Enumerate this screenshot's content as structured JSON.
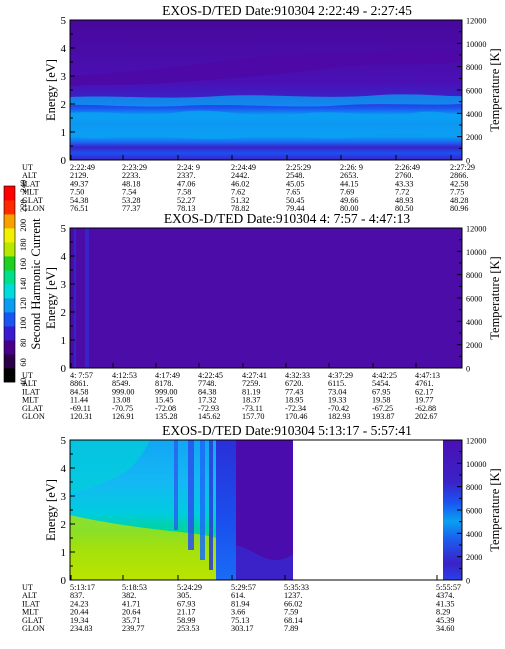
{
  "colorbar": {
    "label": "Second Harmonic Current",
    "tick_labels": [
      "40",
      "60",
      "80",
      "100",
      "120",
      "140",
      "160",
      "180",
      "200",
      "220",
      "240"
    ],
    "colors": [
      "#000000",
      "#2a0048",
      "#48008a",
      "#3a1bd0",
      "#1a55f2",
      "#0a9cf0",
      "#00dcdc",
      "#00e08a",
      "#20d020",
      "#b6e800",
      "#f0f000",
      "#f8a000",
      "#ff2a00",
      "#ff0000"
    ]
  },
  "chart_data": [
    {
      "type": "heatmap",
      "title": "EXOS-D/TED   Date:910304   2:22:49 - 2:27:45",
      "ylabel": "Energy [eV]",
      "y2label": "Temperature [K]",
      "ylim": [
        0,
        5
      ],
      "y2lim": [
        0,
        12000
      ],
      "yticks": [
        "0",
        "1",
        "2",
        "3",
        "4",
        "5"
      ],
      "y2ticks": [
        "0",
        "2000",
        "4000",
        "6000",
        "8000",
        "10000",
        "12000"
      ],
      "table": {
        "row_labels": [
          "UT",
          "ALT",
          "ILAT",
          "MLT",
          "GLAT",
          "GLON"
        ],
        "columns": [
          [
            "2:22:49",
            "2129.",
            "49.37",
            "7.50",
            "54.38",
            "76.51"
          ],
          [
            "2:23:29",
            "2233.",
            "48.18",
            "7.54",
            "53.28",
            "77.37"
          ],
          [
            "2:24: 9",
            "2337.",
            "47.06",
            "7.58",
            "52.27",
            "78.13"
          ],
          [
            "2:24:49",
            "2442.",
            "46.02",
            "7.62",
            "51.32",
            "78.82"
          ],
          [
            "2:25:29",
            "2548.",
            "45.05",
            "7.65",
            "50.45",
            "79.44"
          ],
          [
            "2:26: 9",
            "2653.",
            "44.15",
            "7.69",
            "49.66",
            "80.00"
          ],
          [
            "2:26:49",
            "2760.",
            "43.33",
            "7.72",
            "48.93",
            "80.50"
          ],
          [
            "2:27:29",
            "2866.",
            "42.58",
            "7.75",
            "48.28",
            "80.96"
          ]
        ]
      }
    },
    {
      "type": "heatmap",
      "title": "EXOS-D/TED   Date:910304   4: 7:57 - 4:47:13",
      "ylabel": "Energy [eV]",
      "y2label": "Temperature [K]",
      "ylim": [
        0,
        5
      ],
      "y2lim": [
        0,
        12000
      ],
      "yticks": [
        "0",
        "1",
        "2",
        "3",
        "4",
        "5"
      ],
      "y2ticks": [
        "0",
        "2000",
        "4000",
        "6000",
        "8000",
        "10000",
        "12000"
      ],
      "table": {
        "row_labels": [
          "UT",
          "ALT",
          "ILAT",
          "MLT",
          "GLAT",
          "GLON"
        ],
        "columns": [
          [
            "4: 7:57",
            "8861.",
            "84.58",
            "11.44",
            "-69.11",
            "120.31"
          ],
          [
            "4:12:53",
            "8549.",
            "999.00",
            "13.08",
            "-70.75",
            "126.91"
          ],
          [
            "4:17:49",
            "8178.",
            "999.00",
            "15.45",
            "-72.08",
            "135.28"
          ],
          [
            "4:22:45",
            "7748.",
            "84.38",
            "17.32",
            "-72.93",
            "145.62"
          ],
          [
            "4:27:41",
            "7259.",
            "81.19",
            "18.37",
            "-73.11",
            "157.70"
          ],
          [
            "4:32:33",
            "6720.",
            "77.43",
            "18.95",
            "-72.34",
            "170.46"
          ],
          [
            "4:37:29",
            "6115.",
            "73.04",
            "19.33",
            "-70.42",
            "182.93"
          ],
          [
            "4:42:25",
            "5454.",
            "67.95",
            "19.58",
            "-67.25",
            "193.87"
          ],
          [
            "4:47:13",
            "4761.",
            "62.17",
            "19.77",
            "-62.88",
            "202.67"
          ]
        ]
      }
    },
    {
      "type": "heatmap",
      "title": "EXOS-D/TED   Date:910304   5:13:17 - 5:57:41",
      "ylabel": "Energy [eV]",
      "y2label": "Temperature [K]",
      "ylim": [
        0,
        5
      ],
      "y2lim": [
        0,
        12000
      ],
      "yticks": [
        "0",
        "1",
        "2",
        "3",
        "4",
        "5"
      ],
      "y2ticks": [
        "0",
        "2000",
        "4000",
        "6000",
        "8000",
        "10000",
        "12000"
      ],
      "table": {
        "row_labels": [
          "UT",
          "ALT",
          "ILAT",
          "MLT",
          "GLAT",
          "GLON"
        ],
        "columns": [
          [
            "5:13:17",
            "837.",
            "24.23",
            "20.44",
            "19.34",
            "234.83"
          ],
          [
            "5:18:53",
            "382.",
            "41.71",
            "20.64",
            "35.71",
            "239.77"
          ],
          [
            "5:24:29",
            "305.",
            "67.93",
            "21.17",
            "58.99",
            "253.53"
          ],
          [
            "5:29:57",
            "614.",
            "81.94",
            "3.66",
            "75.13",
            "303.17"
          ],
          [
            "5:35:33",
            "1237.",
            "66.02",
            "7.59",
            "68.14",
            "7.89"
          ],
          [
            "5:55:57",
            "4374.",
            "41.35",
            "8.29",
            "45.39",
            "34.60"
          ]
        ]
      }
    }
  ]
}
